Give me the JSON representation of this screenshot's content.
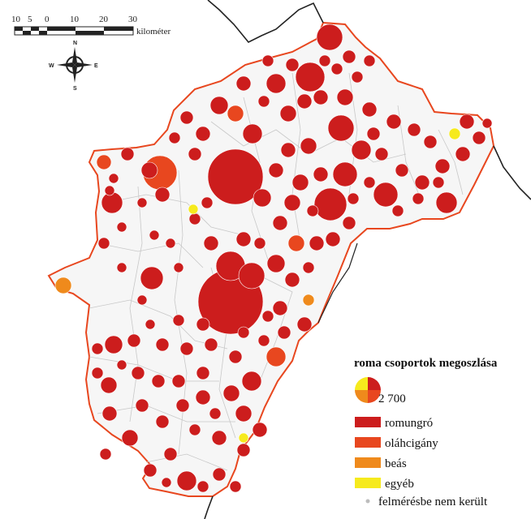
{
  "scale_bar": {
    "ticks": [
      "10",
      "5",
      "0",
      "10",
      "20",
      "30"
    ],
    "unit": "kilométer"
  },
  "compass": {
    "n": "N",
    "s": "S",
    "e": "E",
    "w": "W"
  },
  "legend": {
    "title": "roma csoportok megoszlása",
    "size_value": "2 700",
    "items": [
      {
        "label": "romungró",
        "color": "#cc1d1d"
      },
      {
        "label": "oláhcigány",
        "color": "#e8471f"
      },
      {
        "label": "beás",
        "color": "#ef8a1c"
      },
      {
        "label": "egyéb",
        "color": "#f6ea1d"
      },
      {
        "label": "felmérésbe nem került",
        "color": "#bdbdbd"
      }
    ]
  },
  "colors": {
    "romungro": "#cc1d1d",
    "olahcigany": "#e8471f",
    "beas": "#ef8a1c",
    "egyeb": "#f6ea1d",
    "county_border": "#e8471f",
    "national_border": "#222222",
    "municipal_border": "#c8c8c8"
  }
}
